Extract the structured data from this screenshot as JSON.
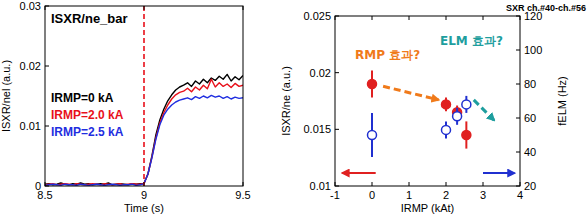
{
  "chart_data": [
    {
      "type": "line",
      "title": "ISXR/ne_bar",
      "xlabel": "Time (s)",
      "ylabel": "ISXR/nel (a.u.)",
      "xlim": [
        8.5,
        9.5
      ],
      "xticks": [
        8.5,
        9,
        9.5
      ],
      "ylim": [
        0,
        0.03
      ],
      "yticks": [
        0,
        0.01,
        0.02,
        0.03
      ],
      "grid": false,
      "legend": "left",
      "reference_lines": [
        {
          "x": 9,
          "color": "#e8101a",
          "line_style": "dashed"
        }
      ],
      "x": [
        8.5,
        8.52,
        8.54,
        8.56,
        8.58,
        8.6,
        8.62,
        8.64,
        8.66,
        8.68,
        8.7,
        8.72,
        8.74,
        8.76,
        8.78,
        8.8,
        8.82,
        8.84,
        8.86,
        8.88,
        8.9,
        8.92,
        8.94,
        8.96,
        8.98,
        9,
        9.02,
        9.04,
        9.06,
        9.08,
        9.1,
        9.12,
        9.14,
        9.16,
        9.18,
        9.2,
        9.22,
        9.24,
        9.26,
        9.28,
        9.3,
        9.32,
        9.34,
        9.36,
        9.38,
        9.4,
        9.42,
        9.44,
        9.46,
        9.48,
        9.5
      ],
      "series": [
        {
          "name": "IRMP=0 kA",
          "color": "#000000",
          "values": [
            0.0003,
            0.0004,
            0.0002,
            0.0003,
            0.0005,
            0.0003,
            0.0002,
            0.0004,
            0.0003,
            0.0005,
            0.0003,
            0.0004,
            0.0002,
            0.0003,
            0.0004,
            0.0003,
            0.0005,
            0.0002,
            0.0003,
            0.0004,
            0.0003,
            0.0002,
            0.0004,
            0.0003,
            0.0004,
            0.0004,
            0.002,
            0.005,
            0.0085,
            0.011,
            0.0128,
            0.0142,
            0.0152,
            0.016,
            0.0165,
            0.0168,
            0.0172,
            0.0166,
            0.0175,
            0.017,
            0.0178,
            0.0172,
            0.018,
            0.0176,
            0.0183,
            0.0178,
            0.0186,
            0.0175,
            0.0182,
            0.0177,
            0.0184
          ]
        },
        {
          "name": "IRMP=2.0 kA",
          "color": "#e8101a",
          "values": [
            0.0002,
            0.0003,
            0.0004,
            0.0002,
            0.0003,
            0.0004,
            0.0003,
            0.0002,
            0.0004,
            0.0003,
            0.0002,
            0.0003,
            0.0004,
            0.0003,
            0.0002,
            0.0004,
            0.0003,
            0.0002,
            0.0003,
            0.0004,
            0.0002,
            0.0003,
            0.0004,
            0.0003,
            0.0003,
            0.0004,
            0.002,
            0.0048,
            0.008,
            0.0105,
            0.0122,
            0.0135,
            0.0145,
            0.0152,
            0.0156,
            0.0158,
            0.0163,
            0.0157,
            0.0165,
            0.016,
            0.0168,
            0.0162,
            0.0178,
            0.0165,
            0.0172,
            0.0166,
            0.017,
            0.0164,
            0.0171,
            0.0166,
            0.0168
          ]
        },
        {
          "name": "IRMP=2.5 kA",
          "color": "#1f2ee0",
          "values": [
            0.0001,
            0.0002,
            0.0003,
            0.0002,
            0.0001,
            0.0003,
            0.0002,
            0.0002,
            0.0001,
            0.0003,
            0.0002,
            0.0001,
            0.0002,
            0.0003,
            0.0002,
            0.0001,
            0.0002,
            0.0003,
            0.0002,
            0.0001,
            0.0002,
            0.0002,
            0.0003,
            0.0001,
            0.0002,
            0.0004,
            0.002,
            0.0047,
            0.0078,
            0.0102,
            0.0118,
            0.0128,
            0.0135,
            0.014,
            0.0143,
            0.0145,
            0.0147,
            0.0144,
            0.0149,
            0.0146,
            0.015,
            0.0147,
            0.0151,
            0.0148,
            0.015,
            0.0146,
            0.0149,
            0.0145,
            0.0148,
            0.0146,
            0.0147
          ]
        }
      ]
    },
    {
      "type": "scatter",
      "title": "SXR ch.#40-ch.#56",
      "xlabel": "IRMP (kAt)",
      "ylabel": "ISXR/ne (a.u.)",
      "y2label": "fELM (Hz)",
      "xlim": [
        -1,
        4
      ],
      "xticks": [
        -1,
        0,
        1,
        2,
        3,
        4
      ],
      "ylim": [
        0.01,
        0.025
      ],
      "yticks": [
        0.01,
        0.015,
        0.02,
        0.025
      ],
      "y2lim": [
        20,
        120
      ],
      "y2ticks": [
        20,
        40,
        60,
        80,
        100,
        120
      ],
      "grid": false,
      "x": [
        0,
        2,
        2.3,
        2.55
      ],
      "series": [
        {
          "color": "#e02020",
          "marker": "filled-circle",
          "values": [
            0.019,
            0.0172,
            0.0165,
            0.0145
          ],
          "errors": [
            0.0012,
            0.0006,
            0.0006,
            0.0012
          ]
        },
        {
          "color": "#2030d0",
          "marker": "open-circle",
          "axis": "y2",
          "values": [
            50,
            53,
            61,
            68
          ],
          "errors": [
            13,
            5,
            5,
            5
          ]
        }
      ],
      "annotations": [
        {
          "text": "RMP 효과?",
          "color": "#f07a1a"
        },
        {
          "text": "ELM 효과?",
          "color": "#1e9e9e"
        }
      ]
    }
  ]
}
